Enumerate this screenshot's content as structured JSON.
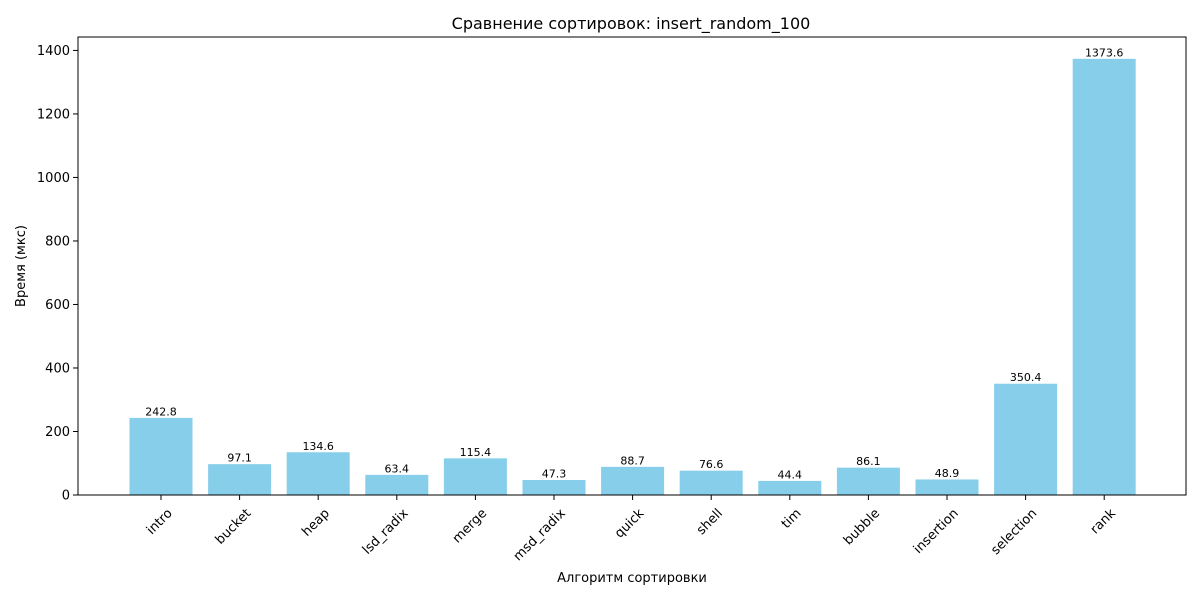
{
  "chart_data": {
    "type": "bar",
    "title": "Сравнение сортировок: insert_random_100",
    "xlabel": "Алгоритм сортировки",
    "ylabel": "Время (мкс)",
    "categories": [
      "intro",
      "bucket",
      "heap",
      "lsd_radix",
      "merge",
      "msd_radix",
      "quick",
      "shell",
      "tim",
      "bubble",
      "insertion",
      "selection",
      "rank"
    ],
    "values": [
      242.8,
      97.1,
      134.6,
      63.4,
      115.4,
      47.3,
      88.7,
      76.6,
      44.4,
      86.1,
      48.9,
      350.4,
      1373.6
    ],
    "data_labels": [
      "242.8",
      "97.1",
      "134.6",
      "63.4",
      "115.4",
      "47.3",
      "88.7",
      "76.6",
      "44.4",
      "86.1",
      "48.9",
      "350.4",
      "1373.6"
    ],
    "yticks": [
      0,
      200,
      400,
      600,
      800,
      1000,
      1200,
      1400
    ],
    "ylim": [
      0,
      1442.3
    ],
    "bar_color": "#87ceeb",
    "grid": false,
    "legend": "none"
  }
}
